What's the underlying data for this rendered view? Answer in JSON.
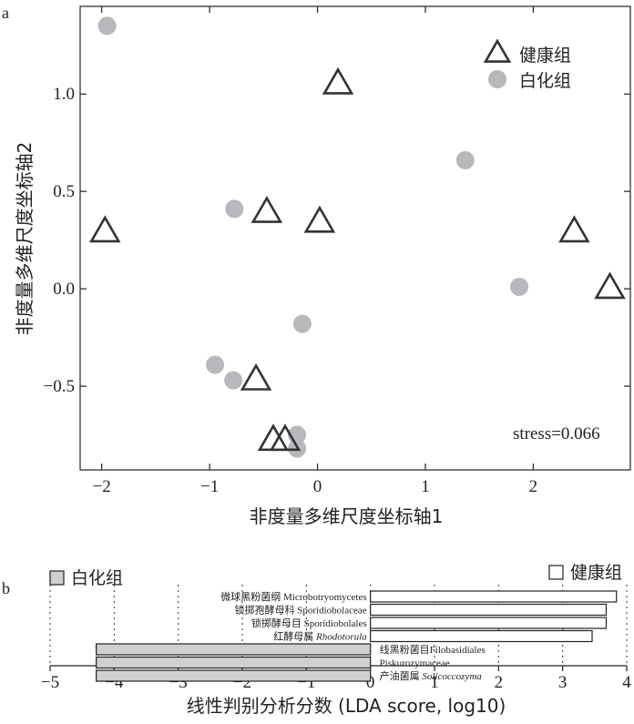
{
  "chart_data": [
    {
      "panel": "a",
      "type": "scatter",
      "xlabel": "非度量多维尺度坐标轴1",
      "ylabel": "非度量多维尺度坐标轴2",
      "xlim": [
        -2.2,
        2.9
      ],
      "ylim": [
        -0.93,
        1.45
      ],
      "xticks": [
        -2,
        -1,
        0,
        1,
        2
      ],
      "yticks": [
        -0.5,
        0.0,
        0.5,
        1.0
      ],
      "xtick_labels": [
        "−2",
        "−1",
        "0",
        "1",
        "2"
      ],
      "ytick_labels": [
        "−0.5",
        "0.0",
        "0.5",
        "1.0"
      ],
      "annotation": "stress=0.066",
      "legend_position": "top-right",
      "series": [
        {
          "name": "健康组",
          "marker": "open-triangle",
          "color": "#333333",
          "points": [
            {
              "x": 0.19,
              "y": 1.05
            },
            {
              "x": -0.47,
              "y": 0.39
            },
            {
              "x": 0.02,
              "y": 0.34
            },
            {
              "x": -1.97,
              "y": 0.29
            },
            {
              "x": 2.38,
              "y": 0.29
            },
            {
              "x": 2.71,
              "y": 0.0
            },
            {
              "x": -0.57,
              "y": -0.47
            },
            {
              "x": -0.41,
              "y": -0.78
            },
            {
              "x": -0.3,
              "y": -0.78
            }
          ]
        },
        {
          "name": "白化组",
          "marker": "filled-circle",
          "color": "#b8b8bc",
          "points": [
            {
              "x": -1.95,
              "y": 1.35
            },
            {
              "x": 1.37,
              "y": 0.66
            },
            {
              "x": -0.77,
              "y": 0.41
            },
            {
              "x": 1.87,
              "y": 0.01
            },
            {
              "x": -0.14,
              "y": -0.18
            },
            {
              "x": -0.95,
              "y": -0.39
            },
            {
              "x": -0.78,
              "y": -0.47
            },
            {
              "x": -0.19,
              "y": -0.75
            },
            {
              "x": -0.19,
              "y": -0.82
            }
          ]
        }
      ]
    },
    {
      "panel": "b",
      "type": "bar",
      "orientation": "horizontal",
      "xlabel": "线性判别分析分数 (LDA score, log10)",
      "xlim": [
        -5,
        4
      ],
      "xticks": [
        -5,
        -4,
        -3,
        -2,
        -1,
        0,
        1,
        2,
        3,
        4
      ],
      "xtick_labels": [
        "−5",
        "−4",
        "−3",
        "−2",
        "−1",
        "0",
        "1",
        "2",
        "3",
        "4"
      ],
      "legend": [
        {
          "name": "白化组",
          "color": "#d0d0d0"
        },
        {
          "name": "健康组",
          "color": "#ffffff"
        }
      ],
      "bars": [
        {
          "label": "微球黑粉菌纲 Microbotryomycetes",
          "value": 3.84,
          "group": "健康组"
        },
        {
          "label": "锁掷孢酵母科 Sporidiobolaceae",
          "value": 3.68,
          "group": "健康组"
        },
        {
          "label": "锁掷酵母目 Sporidiobolales",
          "value": 3.68,
          "group": "健康组"
        },
        {
          "label": "红酵母属 Rhodotorula",
          "value": 3.46,
          "group": "健康组",
          "italic_part": "Rhodotorula"
        },
        {
          "label": "线黑粉菌目Filobasidiales",
          "value": -4.28,
          "group": "白化组"
        },
        {
          "label": "Piskurozymaceae",
          "value": -4.28,
          "group": "白化组"
        },
        {
          "label": "产油菌属 Solicoccozyma",
          "value": -4.28,
          "group": "白化组",
          "italic_part": "Solicoccozyma"
        }
      ]
    }
  ],
  "panel_labels": [
    "a",
    "b"
  ]
}
